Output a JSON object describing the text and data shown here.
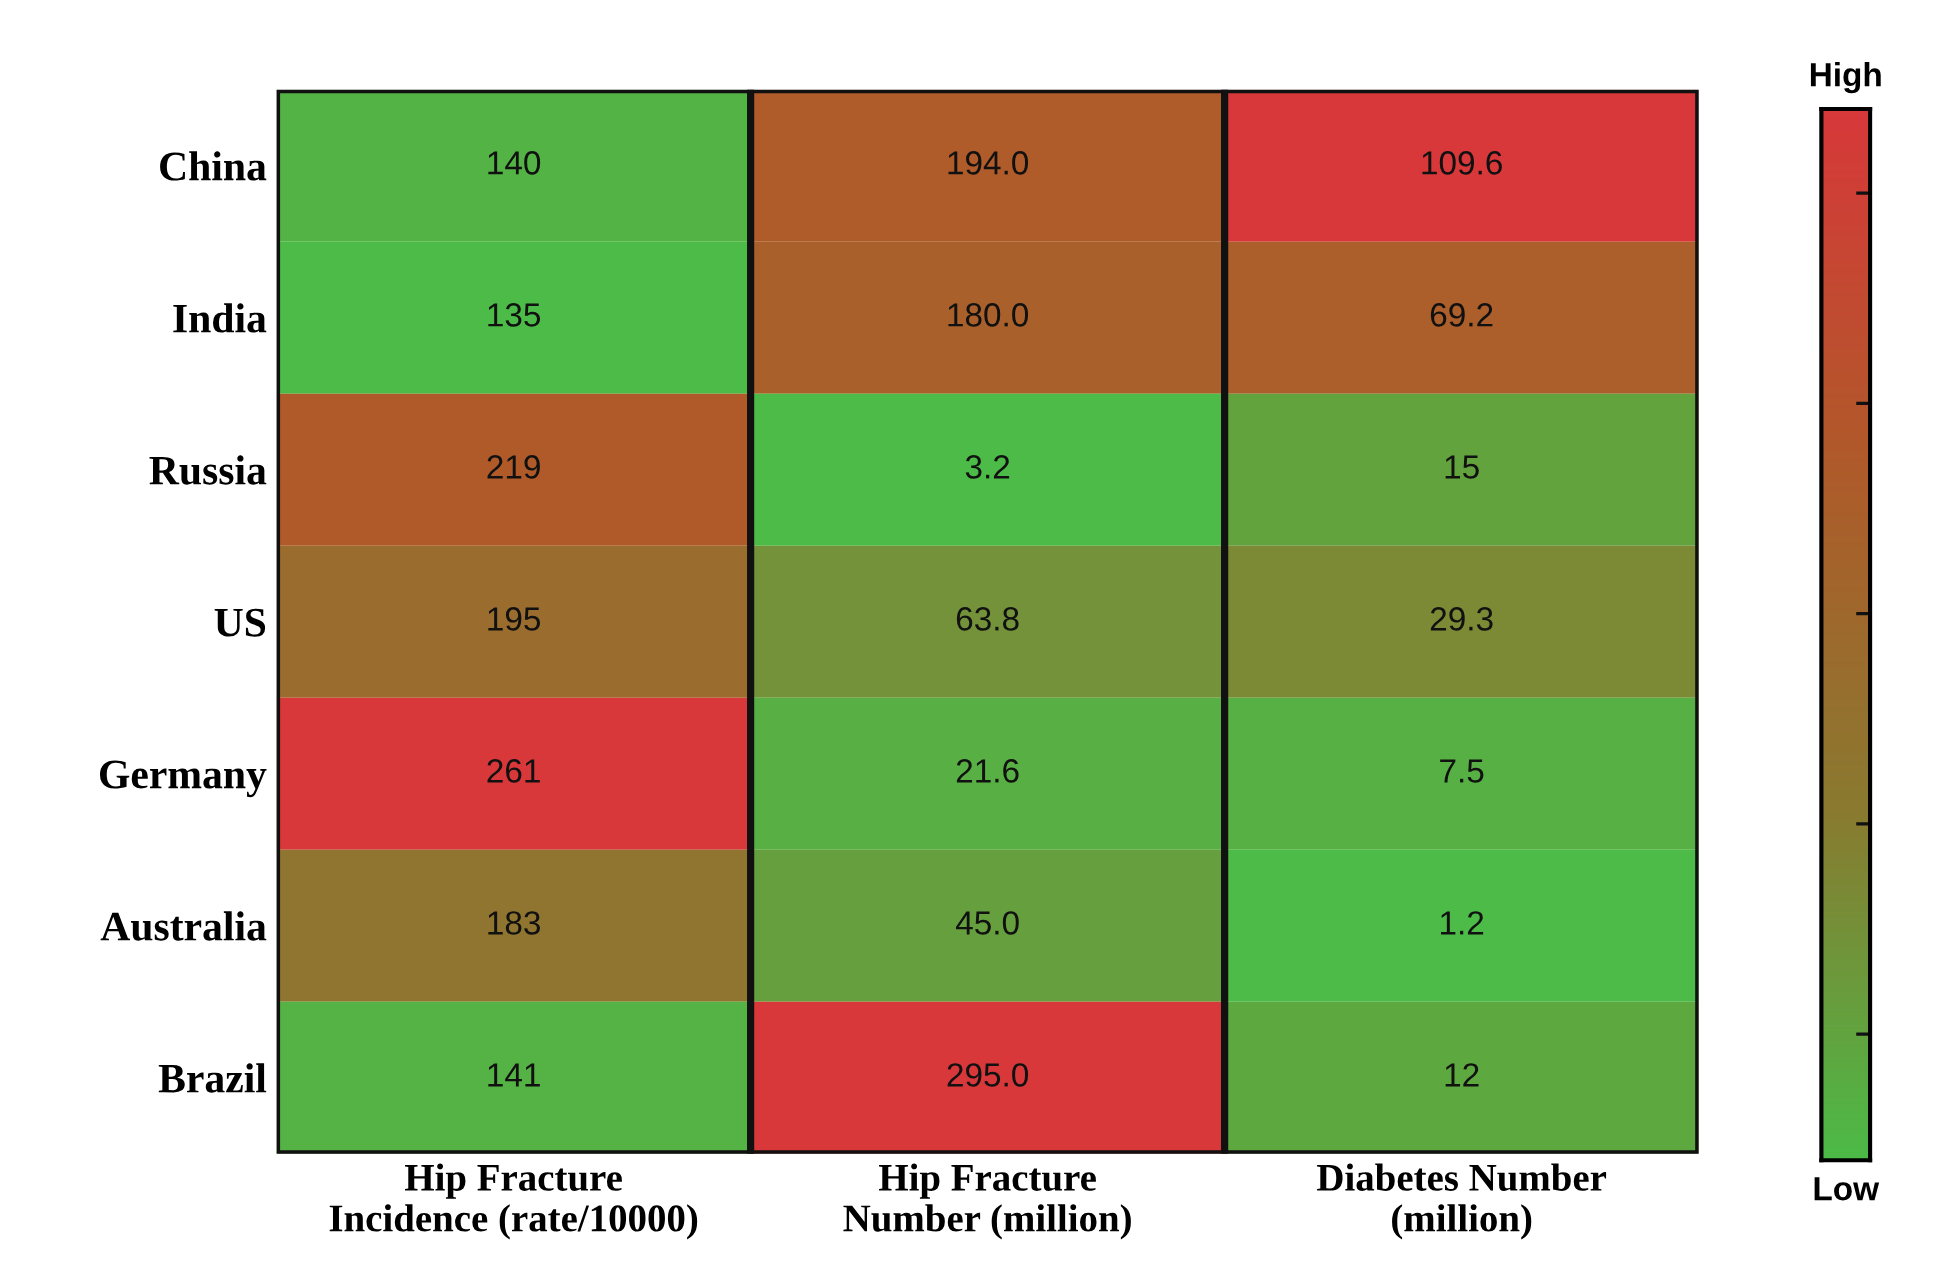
{
  "chart_data": {
    "type": "heatmap",
    "categories": [
      "Hip Fracture\nIncidence (rate/10000)",
      "Hip Fracture\nNumber (million)",
      "Diabetes Number\n(million)"
    ],
    "y_categories": [
      "China",
      "India",
      "Russia",
      "US",
      "Germany",
      "Australia",
      "Brazil"
    ],
    "cells": [
      [
        140,
        194.0,
        109.6
      ],
      [
        135,
        180.0,
        69.2
      ],
      [
        219,
        3.2,
        15
      ],
      [
        195,
        63.8,
        29.3
      ],
      [
        261,
        21.6,
        7.5
      ],
      [
        183,
        45.0,
        1.2
      ],
      [
        141,
        295.0,
        12
      ]
    ],
    "cell_labels": [
      [
        "140",
        "194.0",
        "109.6"
      ],
      [
        "135",
        "180.0",
        "69.2"
      ],
      [
        "219",
        "3.2",
        "15"
      ],
      [
        "195",
        "63.8",
        "29.3"
      ],
      [
        "261",
        "21.6",
        "7.5"
      ],
      [
        "183",
        "45.0",
        "1.2"
      ],
      [
        "141",
        "295.0",
        "12"
      ]
    ],
    "annotations": [
      "High",
      "Low"
    ]
  }
}
